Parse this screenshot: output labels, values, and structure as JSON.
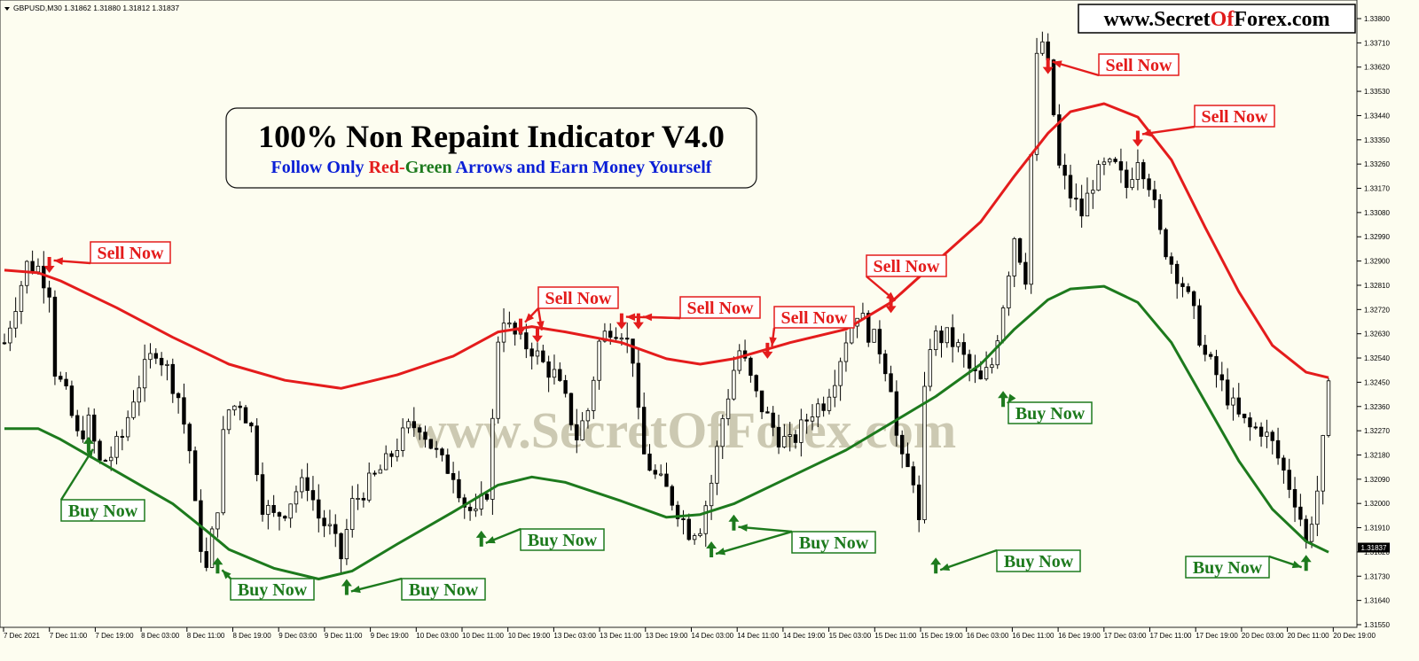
{
  "symbol_info": "GBPUSD,M30  1.31862 1.31880 1.31812 1.31837",
  "website": {
    "prefix": "www.Secret",
    "highlight": "Of",
    "suffix": "Forex.com",
    "accent": "#e01b1b"
  },
  "watermark": "www.SecretOfForex.com",
  "headline": {
    "title": "100% Non Repaint Indicator V4.0",
    "sub_1": "Follow Only ",
    "sub_red": "Red",
    "sub_dash": "-",
    "sub_green": "Green",
    "sub_2": " Arrows and Earn Money Yourself"
  },
  "colors": {
    "upper_band": "#e41c1c",
    "lower_band": "#1d7a1d",
    "candles": "#000000",
    "background": "#fdfdf0",
    "blue_text": "#0a1fd6"
  },
  "chart_data": {
    "type": "line",
    "price_axis_ticks": [
      "1.33800",
      "1.33710",
      "1.33620",
      "1.33530",
      "1.33440",
      "1.33350",
      "1.33260",
      "1.33170",
      "1.33080",
      "1.32990",
      "1.32900",
      "1.32810",
      "1.32720",
      "1.32630",
      "1.32540",
      "1.32450",
      "1.32360",
      "1.32270",
      "1.32180",
      "1.32090",
      "1.32000",
      "1.31910",
      "1.31820",
      "1.31730",
      "1.31640",
      "1.31550"
    ],
    "time_axis_ticks": [
      "7 Dec 2021",
      "7 Dec 11:00",
      "7 Dec 19:00",
      "8 Dec 03:00",
      "8 Dec 11:00",
      "8 Dec 19:00",
      "9 Dec 03:00",
      "9 Dec 11:00",
      "9 Dec 19:00",
      "10 Dec 03:00",
      "10 Dec 11:00",
      "10 Dec 19:00",
      "13 Dec 03:00",
      "13 Dec 11:00",
      "13 Dec 19:00",
      "14 Dec 03:00",
      "14 Dec 11:00",
      "14 Dec 19:00",
      "15 Dec 03:00",
      "15 Dec 11:00",
      "15 Dec 19:00",
      "16 Dec 03:00",
      "16 Dec 11:00",
      "16 Dec 19:00",
      "17 Dec 03:00",
      "17 Dec 11:00",
      "17 Dec 19:00",
      "20 Dec 03:00",
      "20 Dec 11:00",
      "20 Dec 19:00"
    ],
    "current_price": "1.31837",
    "ylim": [
      1.3155,
      1.3381
    ],
    "price_points": [
      [
        0,
        1.326
      ],
      [
        2,
        1.3275
      ],
      [
        4,
        1.3289
      ],
      [
        6,
        1.3288
      ],
      [
        8,
        1.328
      ],
      [
        9,
        1.325
      ],
      [
        11,
        1.324
      ],
      [
        13,
        1.3225
      ],
      [
        15,
        1.323
      ],
      [
        17,
        1.3215
      ],
      [
        19,
        1.3218
      ],
      [
        21,
        1.3225
      ],
      [
        23,
        1.324
      ],
      [
        25,
        1.325
      ],
      [
        27,
        1.3258
      ],
      [
        29,
        1.325
      ],
      [
        31,
        1.324
      ],
      [
        33,
        1.322
      ],
      [
        34,
        1.3198
      ],
      [
        35,
        1.3185
      ],
      [
        36,
        1.3175
      ],
      [
        37,
        1.3188
      ],
      [
        38,
        1.32
      ],
      [
        39,
        1.3225
      ],
      [
        40,
        1.3235
      ],
      [
        42,
        1.3238
      ],
      [
        44,
        1.3228
      ],
      [
        46,
        1.32
      ],
      [
        48,
        1.3195
      ],
      [
        50,
        1.3198
      ],
      [
        52,
        1.3205
      ],
      [
        54,
        1.3208
      ],
      [
        56,
        1.3195
      ],
      [
        58,
        1.319
      ],
      [
        60,
        1.318
      ],
      [
        61,
        1.319
      ],
      [
        62,
        1.32
      ],
      [
        64,
        1.3205
      ],
      [
        66,
        1.321
      ],
      [
        68,
        1.3215
      ],
      [
        70,
        1.3222
      ],
      [
        72,
        1.3228
      ],
      [
        74,
        1.323
      ],
      [
        76,
        1.3222
      ],
      [
        78,
        1.3215
      ],
      [
        80,
        1.3212
      ],
      [
        82,
        1.32
      ],
      [
        84,
        1.3195
      ],
      [
        86,
        1.3205
      ],
      [
        87,
        1.323
      ],
      [
        88,
        1.3262
      ],
      [
        89,
        1.327
      ],
      [
        90,
        1.3265
      ],
      [
        92,
        1.326
      ],
      [
        94,
        1.3258
      ],
      [
        96,
        1.3252
      ],
      [
        98,
        1.3248
      ],
      [
        100,
        1.3238
      ],
      [
        102,
        1.3225
      ],
      [
        104,
        1.3235
      ],
      [
        106,
        1.326
      ],
      [
        108,
        1.3266
      ],
      [
        110,
        1.3265
      ],
      [
        112,
        1.3255
      ],
      [
        113,
        1.3232
      ],
      [
        114,
        1.3218
      ],
      [
        116,
        1.321
      ],
      [
        118,
        1.3205
      ],
      [
        120,
        1.3198
      ],
      [
        122,
        1.319
      ],
      [
        124,
        1.3192
      ],
      [
        126,
        1.3208
      ],
      [
        128,
        1.3232
      ],
      [
        130,
        1.325
      ],
      [
        131,
        1.3257
      ],
      [
        132,
        1.3252
      ],
      [
        134,
        1.324
      ],
      [
        136,
        1.3232
      ],
      [
        138,
        1.3225
      ],
      [
        140,
        1.3222
      ],
      [
        142,
        1.3228
      ],
      [
        144,
        1.3235
      ],
      [
        146,
        1.3238
      ],
      [
        148,
        1.3248
      ],
      [
        150,
        1.3262
      ],
      [
        152,
        1.3272
      ],
      [
        154,
        1.3264
      ],
      [
        156,
        1.3258
      ],
      [
        158,
        1.3245
      ],
      [
        159,
        1.3225
      ],
      [
        160,
        1.3215
      ],
      [
        162,
        1.321
      ],
      [
        163,
        1.3192
      ],
      [
        164,
        1.324
      ],
      [
        165,
        1.326
      ],
      [
        166,
        1.3262
      ],
      [
        168,
        1.3262
      ],
      [
        170,
        1.3258
      ],
      [
        172,
        1.325
      ],
      [
        174,
        1.3245
      ],
      [
        176,
        1.3252
      ],
      [
        178,
        1.3275
      ],
      [
        180,
        1.33
      ],
      [
        182,
        1.3285
      ],
      [
        183,
        1.333
      ],
      [
        184,
        1.3365
      ],
      [
        185,
        1.3372
      ],
      [
        186,
        1.3362
      ],
      [
        187,
        1.3345
      ],
      [
        188,
        1.3325
      ],
      [
        190,
        1.3315
      ],
      [
        192,
        1.3308
      ],
      [
        194,
        1.332
      ],
      [
        196,
        1.3325
      ],
      [
        198,
        1.3325
      ],
      [
        200,
        1.3318
      ],
      [
        202,
        1.333
      ],
      [
        204,
        1.332
      ],
      [
        206,
        1.33
      ],
      [
        208,
        1.329
      ],
      [
        210,
        1.3282
      ],
      [
        212,
        1.327
      ],
      [
        214,
        1.3255
      ],
      [
        216,
        1.3248
      ],
      [
        218,
        1.324
      ],
      [
        220,
        1.3232
      ],
      [
        222,
        1.3228
      ],
      [
        224,
        1.3228
      ],
      [
        226,
        1.3222
      ],
      [
        228,
        1.3212
      ],
      [
        230,
        1.3202
      ],
      [
        231,
        1.3195
      ],
      [
        232,
        1.3185
      ],
      [
        233,
        1.3195
      ],
      [
        234,
        1.3205
      ],
      [
        235,
        1.3222
      ],
      [
        236,
        1.3242
      ]
    ],
    "series": [
      {
        "name": "Upper Band",
        "color": "#e41c1c",
        "points": [
          [
            0,
            1.3287
          ],
          [
            6,
            1.3286
          ],
          [
            10,
            1.3283
          ],
          [
            20,
            1.3273
          ],
          [
            30,
            1.3262
          ],
          [
            40,
            1.3252
          ],
          [
            50,
            1.3246
          ],
          [
            60,
            1.3243
          ],
          [
            70,
            1.3248
          ],
          [
            80,
            1.3255
          ],
          [
            88,
            1.3264
          ],
          [
            94,
            1.3266
          ],
          [
            100,
            1.3264
          ],
          [
            110,
            1.326
          ],
          [
            118,
            1.3254
          ],
          [
            124,
            1.3252
          ],
          [
            130,
            1.3254
          ],
          [
            140,
            1.326
          ],
          [
            150,
            1.3265
          ],
          [
            158,
            1.3275
          ],
          [
            166,
            1.329
          ],
          [
            174,
            1.3305
          ],
          [
            180,
            1.3322
          ],
          [
            186,
            1.3338
          ],
          [
            190,
            1.3346
          ],
          [
            196,
            1.3349
          ],
          [
            202,
            1.3344
          ],
          [
            208,
            1.3328
          ],
          [
            214,
            1.3303
          ],
          [
            220,
            1.3279
          ],
          [
            226,
            1.3259
          ],
          [
            232,
            1.3249
          ],
          [
            236,
            1.3247
          ]
        ]
      },
      {
        "name": "Lower Band",
        "color": "#1d7a1d",
        "points": [
          [
            0,
            1.3228
          ],
          [
            6,
            1.3228
          ],
          [
            10,
            1.3224
          ],
          [
            20,
            1.3212
          ],
          [
            30,
            1.32
          ],
          [
            36,
            1.319
          ],
          [
            40,
            1.3183
          ],
          [
            48,
            1.3176
          ],
          [
            56,
            1.3172
          ],
          [
            62,
            1.3175
          ],
          [
            70,
            1.3185
          ],
          [
            80,
            1.3197
          ],
          [
            88,
            1.3207
          ],
          [
            94,
            1.321
          ],
          [
            100,
            1.3208
          ],
          [
            110,
            1.3201
          ],
          [
            118,
            1.3195
          ],
          [
            124,
            1.3196
          ],
          [
            130,
            1.32
          ],
          [
            140,
            1.321
          ],
          [
            150,
            1.322
          ],
          [
            158,
            1.323
          ],
          [
            166,
            1.324
          ],
          [
            174,
            1.3252
          ],
          [
            180,
            1.3265
          ],
          [
            186,
            1.3276
          ],
          [
            190,
            1.328
          ],
          [
            196,
            1.3281
          ],
          [
            202,
            1.3275
          ],
          [
            208,
            1.326
          ],
          [
            214,
            1.3238
          ],
          [
            220,
            1.3216
          ],
          [
            226,
            1.3198
          ],
          [
            232,
            1.3186
          ],
          [
            236,
            1.3182
          ]
        ]
      }
    ],
    "signals": [
      {
        "type": "sell",
        "label": "Sell Now",
        "bar": 8,
        "price": 1.3286,
        "label_xy": [
          147,
          285
        ]
      },
      {
        "type": "sell",
        "label": "Sell Now",
        "bar": 92,
        "price": 1.3263,
        "label_xy": [
          652,
          336
        ]
      },
      {
        "type": "sell",
        "label": "Sell Now",
        "bar": 95,
        "price": 1.326,
        "label_xy": [
          652,
          336
        ]
      },
      {
        "type": "sell",
        "label": "Sell Now",
        "bar": 110,
        "price": 1.3265,
        "label_xy": [
          812,
          347
        ]
      },
      {
        "type": "sell",
        "label": "Sell Now",
        "bar": 113,
        "price": 1.3265,
        "label_xy": [
          812,
          347
        ]
      },
      {
        "type": "sell",
        "label": "Sell Now",
        "bar": 136,
        "price": 1.3254,
        "label_xy": [
          918,
          358
        ]
      },
      {
        "type": "sell",
        "label": "Sell Now",
        "bar": 158,
        "price": 1.3271,
        "label_xy": [
          1022,
          300
        ]
      },
      {
        "type": "sell",
        "label": "Sell Now",
        "bar": 186,
        "price": 1.336,
        "label_xy": [
          1284,
          73
        ]
      },
      {
        "type": "sell",
        "label": "Sell Now",
        "bar": 202,
        "price": 1.3333,
        "label_xy": [
          1392,
          131
        ]
      },
      {
        "type": "buy",
        "label": "Buy Now",
        "bar": 15,
        "price": 1.3225,
        "label_xy": [
          116,
          576
        ]
      },
      {
        "type": "buy",
        "label": "Buy Now",
        "bar": 38,
        "price": 1.318,
        "label_xy": [
          307,
          665
        ]
      },
      {
        "type": "buy",
        "label": "Buy Now",
        "bar": 61,
        "price": 1.3172,
        "label_xy": [
          500,
          665
        ]
      },
      {
        "type": "buy",
        "label": "Buy Now",
        "bar": 85,
        "price": 1.319,
        "label_xy": [
          634,
          609
        ]
      },
      {
        "type": "buy",
        "label": "Buy Now",
        "bar": 126,
        "price": 1.3186,
        "label_xy": [
          940,
          612
        ]
      },
      {
        "type": "buy",
        "label": "Buy Now",
        "bar": 130,
        "price": 1.3196,
        "label_xy": [
          940,
          612
        ]
      },
      {
        "type": "buy",
        "label": "Buy Now",
        "bar": 166,
        "price": 1.318,
        "label_xy": [
          1171,
          633
        ]
      },
      {
        "type": "buy",
        "label": "Buy Now",
        "bar": 178,
        "price": 1.3242,
        "label_xy": [
          1184,
          466
        ]
      },
      {
        "type": "buy",
        "label": "Buy Now",
        "bar": 232,
        "price": 1.3181,
        "label_xy": [
          1384,
          640
        ]
      }
    ]
  }
}
